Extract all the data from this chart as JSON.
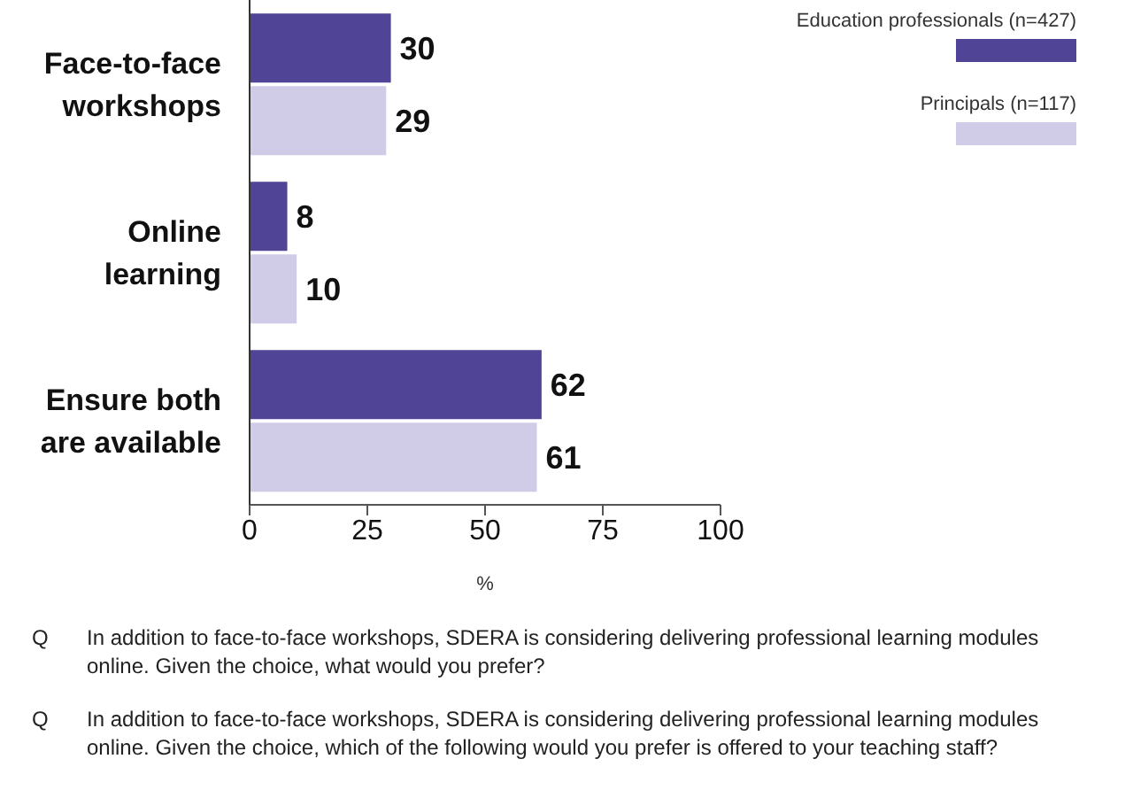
{
  "chart_data": {
    "type": "bar",
    "orientation": "horizontal",
    "xlabel": "%",
    "categories": [
      "Face-to-face workshops",
      "Online learning",
      "Ensure both are available"
    ],
    "series": [
      {
        "name": "Education professionals (n=427)",
        "color": "#4f4496",
        "values": [
          30,
          8,
          62
        ]
      },
      {
        "name": "Principals (n=117)",
        "color": "#d0cce8",
        "values": [
          29,
          10,
          61
        ]
      }
    ],
    "xlim": [
      0,
      100
    ],
    "xticks": [
      0,
      25,
      50,
      75,
      100
    ],
    "grid": false,
    "legend": "top right",
    "data_labels": true,
    "annotations": [
      "Q In addition to face-to-face workshops, SDERA is considering delivering professional learning modules online.  Given the choice, what would you prefer?",
      "Q In addition to face-to-face workshops, SDERA is considering delivering professional learning modules online.  Given the choice, which of the following would you prefer is offered to your teaching staff?"
    ]
  }
}
